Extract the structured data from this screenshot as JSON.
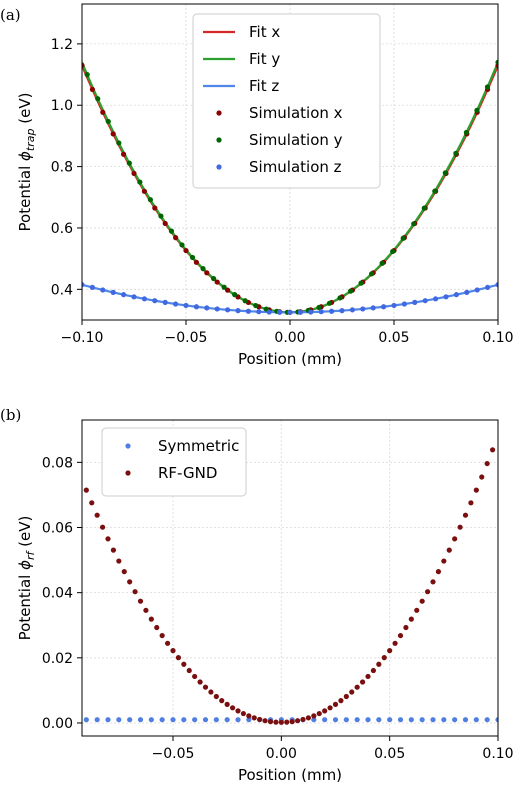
{
  "chart_data": [
    {
      "panel_label": "(a)",
      "type": "line",
      "xlabel": "Position (mm)",
      "ylabel_main": "Potential ",
      "ylabel_symbol": "ϕ",
      "ylabel_subscript": "trap",
      "ylabel_unit": " (eV)",
      "xlim": [
        -0.1,
        0.1
      ],
      "ylim": [
        0.3,
        1.33
      ],
      "xticks": [
        -0.1,
        -0.05,
        0.0,
        0.05,
        0.1
      ],
      "xtick_labels": [
        "−0.10",
        "−0.05",
        "0.00",
        "0.05",
        "0.10"
      ],
      "yticks": [
        0.4,
        0.6,
        0.8,
        1.0,
        1.2
      ],
      "ytick_labels": [
        "0.4",
        "0.6",
        "0.8",
        "1.0",
        "1.2"
      ],
      "grid": true,
      "legend_position": "top-center",
      "series": [
        {
          "name": "Fit x",
          "kind": "line",
          "color": "#d62728",
          "model": "quadratic",
          "x0": 0.0,
          "y0": 0.325,
          "a": 80.5
        },
        {
          "name": "Fit y",
          "kind": "line",
          "color": "#2ca02c",
          "model": "quadratic",
          "x0": 0.0,
          "y0": 0.325,
          "a": 81.5
        },
        {
          "name": "Fit z",
          "kind": "line",
          "color": "#4f86e8",
          "model": "quadratic",
          "x0": 0.0,
          "y0": 0.325,
          "a": 9.0
        },
        {
          "name": "Simulation x",
          "kind": "scatter",
          "color": "#8b0000",
          "x_start": -0.1,
          "x_end": 0.1,
          "n": 41,
          "model": "quadratic",
          "x0": 0.0,
          "y0": 0.325,
          "a": 80.5
        },
        {
          "name": "Simulation y",
          "kind": "scatter",
          "color": "#006400",
          "x_start": -0.0975,
          "x_end": 0.1,
          "n": 40,
          "model": "quadratic",
          "x0": 0.0,
          "y0": 0.325,
          "a": 81.5
        },
        {
          "name": "Simulation z",
          "kind": "scatter",
          "color": "#4169e1",
          "x_start": -0.1,
          "x_end": 0.1,
          "n": 41,
          "model": "quadratic",
          "x0": 0.0,
          "y0": 0.325,
          "a": 9.0
        }
      ]
    },
    {
      "panel_label": "(b)",
      "type": "scatter",
      "xlabel": "Position (mm)",
      "ylabel_main": "Potential ",
      "ylabel_symbol": "ϕ",
      "ylabel_subscript": "rf",
      "ylabel_unit": " (eV)",
      "xlim": [
        -0.092,
        0.1
      ],
      "ylim": [
        -0.004,
        0.093
      ],
      "xticks": [
        -0.05,
        0.0,
        0.05,
        0.1
      ],
      "xtick_labels": [
        "−0.05",
        "0.00",
        "0.05",
        "0.10"
      ],
      "yticks": [
        0.0,
        0.02,
        0.04,
        0.06,
        0.08
      ],
      "ytick_labels": [
        "0.00",
        "0.02",
        "0.04",
        "0.06",
        "0.08"
      ],
      "grid": true,
      "legend_position": "top-left",
      "series": [
        {
          "name": "Symmetric",
          "kind": "scatter",
          "color": "#4f7fe0",
          "x_start": -0.09,
          "x_end": 0.1,
          "n": 39,
          "model": "constant",
          "value": 0.001
        },
        {
          "name": "RF-GND",
          "kind": "scatter",
          "color": "#7a0f0f",
          "x_start": -0.09,
          "x_end": 0.0975,
          "n": 76,
          "model": "quadratic",
          "x0": 0.0,
          "y0": 0.0002,
          "a": 8.8
        }
      ]
    }
  ]
}
